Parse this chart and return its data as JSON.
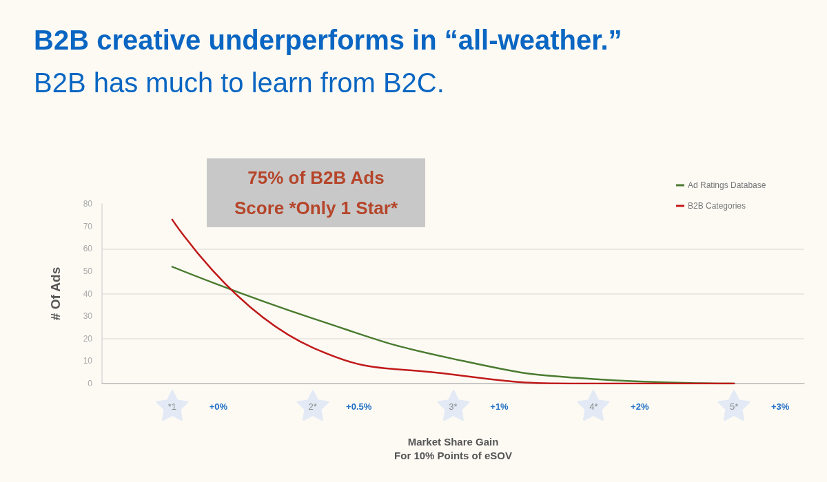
{
  "chart_data": {
    "type": "line",
    "title": "B2B creative underperforms in “all-weather.”",
    "subtitle": "B2B has much to learn from B2C.",
    "xlabel": "Market Share Gain\nFor 10% Points of eSOV",
    "ylabel": "# Of Ads",
    "annotations": [
      "75% of B2B Ads\nScore *Only 1 Star*"
    ],
    "categories": [
      "*1 +0%",
      "2* +0.5%",
      "3* +1%",
      "4* +2%",
      "5* +3%"
    ],
    "series": [
      {
        "name": "Ad Ratings Database",
        "color": "#4a7b2f",
        "values": [
          52,
          29,
          11,
          2,
          0
        ]
      },
      {
        "name": "B2B Categories",
        "color": "#c01a1a",
        "values": [
          73,
          16,
          4,
          0,
          0
        ]
      }
    ],
    "ylim": [
      0,
      80
    ],
    "yticks": [
      0,
      10,
      20,
      30,
      40,
      50,
      60,
      70,
      80
    ],
    "grid": "y",
    "legend": "top right",
    "marker": "none"
  }
}
